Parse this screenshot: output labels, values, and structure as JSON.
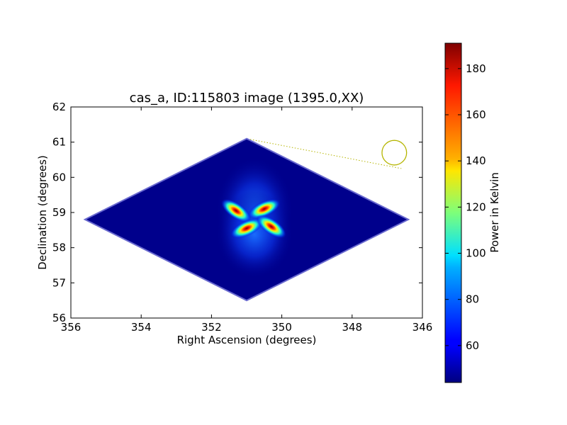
{
  "chart_data": {
    "type": "heatmap",
    "title": "cas_a, ID:115803 image (1395.0,XX)",
    "xlabel": "Right Ascension (degrees)",
    "ylabel": "Declination (degrees)",
    "xlim": [
      356,
      346
    ],
    "ylim": [
      56,
      62
    ],
    "xticks": [
      "356",
      "354",
      "352",
      "350",
      "348",
      "346"
    ],
    "yticks": [
      "56",
      "57",
      "58",
      "59",
      "60",
      "61",
      "62"
    ],
    "footprint": [
      [
        351.0,
        61.1
      ],
      [
        346.4,
        58.8
      ],
      [
        351.0,
        56.5
      ],
      [
        355.6,
        58.8
      ]
    ],
    "beam_circle": {
      "ra": 346.8,
      "dec": 60.7,
      "radius_deg": 0.35
    },
    "beam_leader": {
      "from": [
        350.9,
        61.08
      ],
      "to": [
        346.6,
        60.25
      ]
    },
    "lobes": [
      {
        "ra": 351.3,
        "dec": 59.05,
        "peak": 190
      },
      {
        "ra": 350.5,
        "dec": 59.1,
        "peak": 185
      },
      {
        "ra": 351.0,
        "dec": 58.55,
        "peak": 180
      },
      {
        "ra": 350.3,
        "dec": 58.6,
        "peak": 182
      }
    ],
    "background_level": 45,
    "colorbar": {
      "label": "Power in Kelvin",
      "range": [
        44,
        191
      ],
      "ticks": [
        "60",
        "80",
        "100",
        "120",
        "140",
        "160",
        "180"
      ],
      "colormap": "jet"
    },
    "colors": {
      "beam": "#b5b500"
    }
  }
}
